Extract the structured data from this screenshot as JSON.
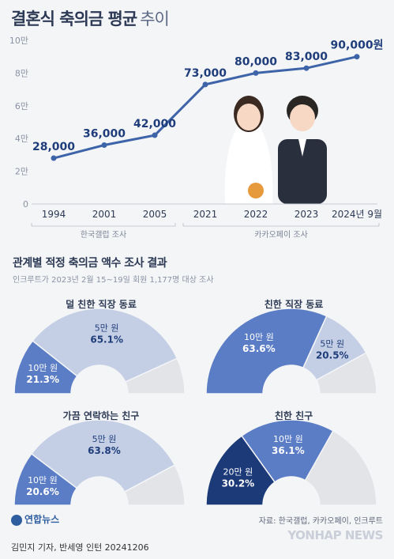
{
  "title_main": "결혼식 축의금 평균",
  "title_sub": "추이",
  "chart_data": [
    {
      "type": "line",
      "title": "결혼식 축의금 평균 추이",
      "categories": [
        "1994",
        "2001",
        "2005",
        "2021",
        "2022",
        "2023",
        "2024년 9월"
      ],
      "values": [
        28000,
        36000,
        42000,
        73000,
        80000,
        83000,
        90000
      ],
      "value_labels": [
        "28,000",
        "36,000",
        "42,000",
        "73,000",
        "80,000",
        "83,000",
        "90,000원"
      ],
      "yticks": [
        "0",
        "2만",
        "4만",
        "6만",
        "8만",
        "10만"
      ],
      "ylim": [
        0,
        100000
      ],
      "grid": false,
      "color": "#3d64a8",
      "sources": [
        "한국갤럽 조사",
        "카카오페이 조사"
      ]
    },
    {
      "type": "pie",
      "title": "덜 친한 직장 동료",
      "slices": [
        {
          "label": "10만 원",
          "value": 21.3,
          "value_text": "21.3%",
          "color": "#5b7dc6"
        },
        {
          "label": "5만 원",
          "value": 65.1,
          "value_text": "65.1%",
          "color": "#c4cfe6"
        },
        {
          "label": "",
          "value": 13.6,
          "value_text": "",
          "color": "#e3e4e8"
        }
      ]
    },
    {
      "type": "pie",
      "title": "친한 직장 동료",
      "slices": [
        {
          "label": "10만 원",
          "value": 63.6,
          "value_text": "63.6%",
          "color": "#5b7dc6"
        },
        {
          "label": "5만 원",
          "value": 20.5,
          "value_text": "20.5%",
          "color": "#c4cfe6"
        },
        {
          "label": "",
          "value": 15.9,
          "value_text": "",
          "color": "#e3e4e8"
        }
      ]
    },
    {
      "type": "pie",
      "title": "가끔 연락하는 친구",
      "slices": [
        {
          "label": "10만 원",
          "value": 20.6,
          "value_text": "20.6%",
          "color": "#5b7dc6"
        },
        {
          "label": "5만 원",
          "value": 63.8,
          "value_text": "63.8%",
          "color": "#c4cfe6"
        },
        {
          "label": "",
          "value": 15.6,
          "value_text": "",
          "color": "#e3e4e8"
        }
      ]
    },
    {
      "type": "pie",
      "title": "친한 친구",
      "slices": [
        {
          "label": "20만 원",
          "value": 30.2,
          "value_text": "30.2%",
          "color": "#1c3a78"
        },
        {
          "label": "10만 원",
          "value": 36.1,
          "value_text": "36.1%",
          "color": "#5b7dc6"
        },
        {
          "label": "",
          "value": 33.7,
          "value_text": "",
          "color": "#e3e4e8"
        }
      ]
    }
  ],
  "section_title": "관계별 적정 축의금 액수 조사 결과",
  "section_sub": "인크루트가 2023년 2월 15~19일 회원 1,177명 대상 조사",
  "footer": {
    "logo": "연합뉴스",
    "source": "자료: 한국갤럽, 카카오페이, 인크루트",
    "credit": "김민지 기자, 반세영 인턴  20241206",
    "watermark": "YONHAP NEWS"
  }
}
